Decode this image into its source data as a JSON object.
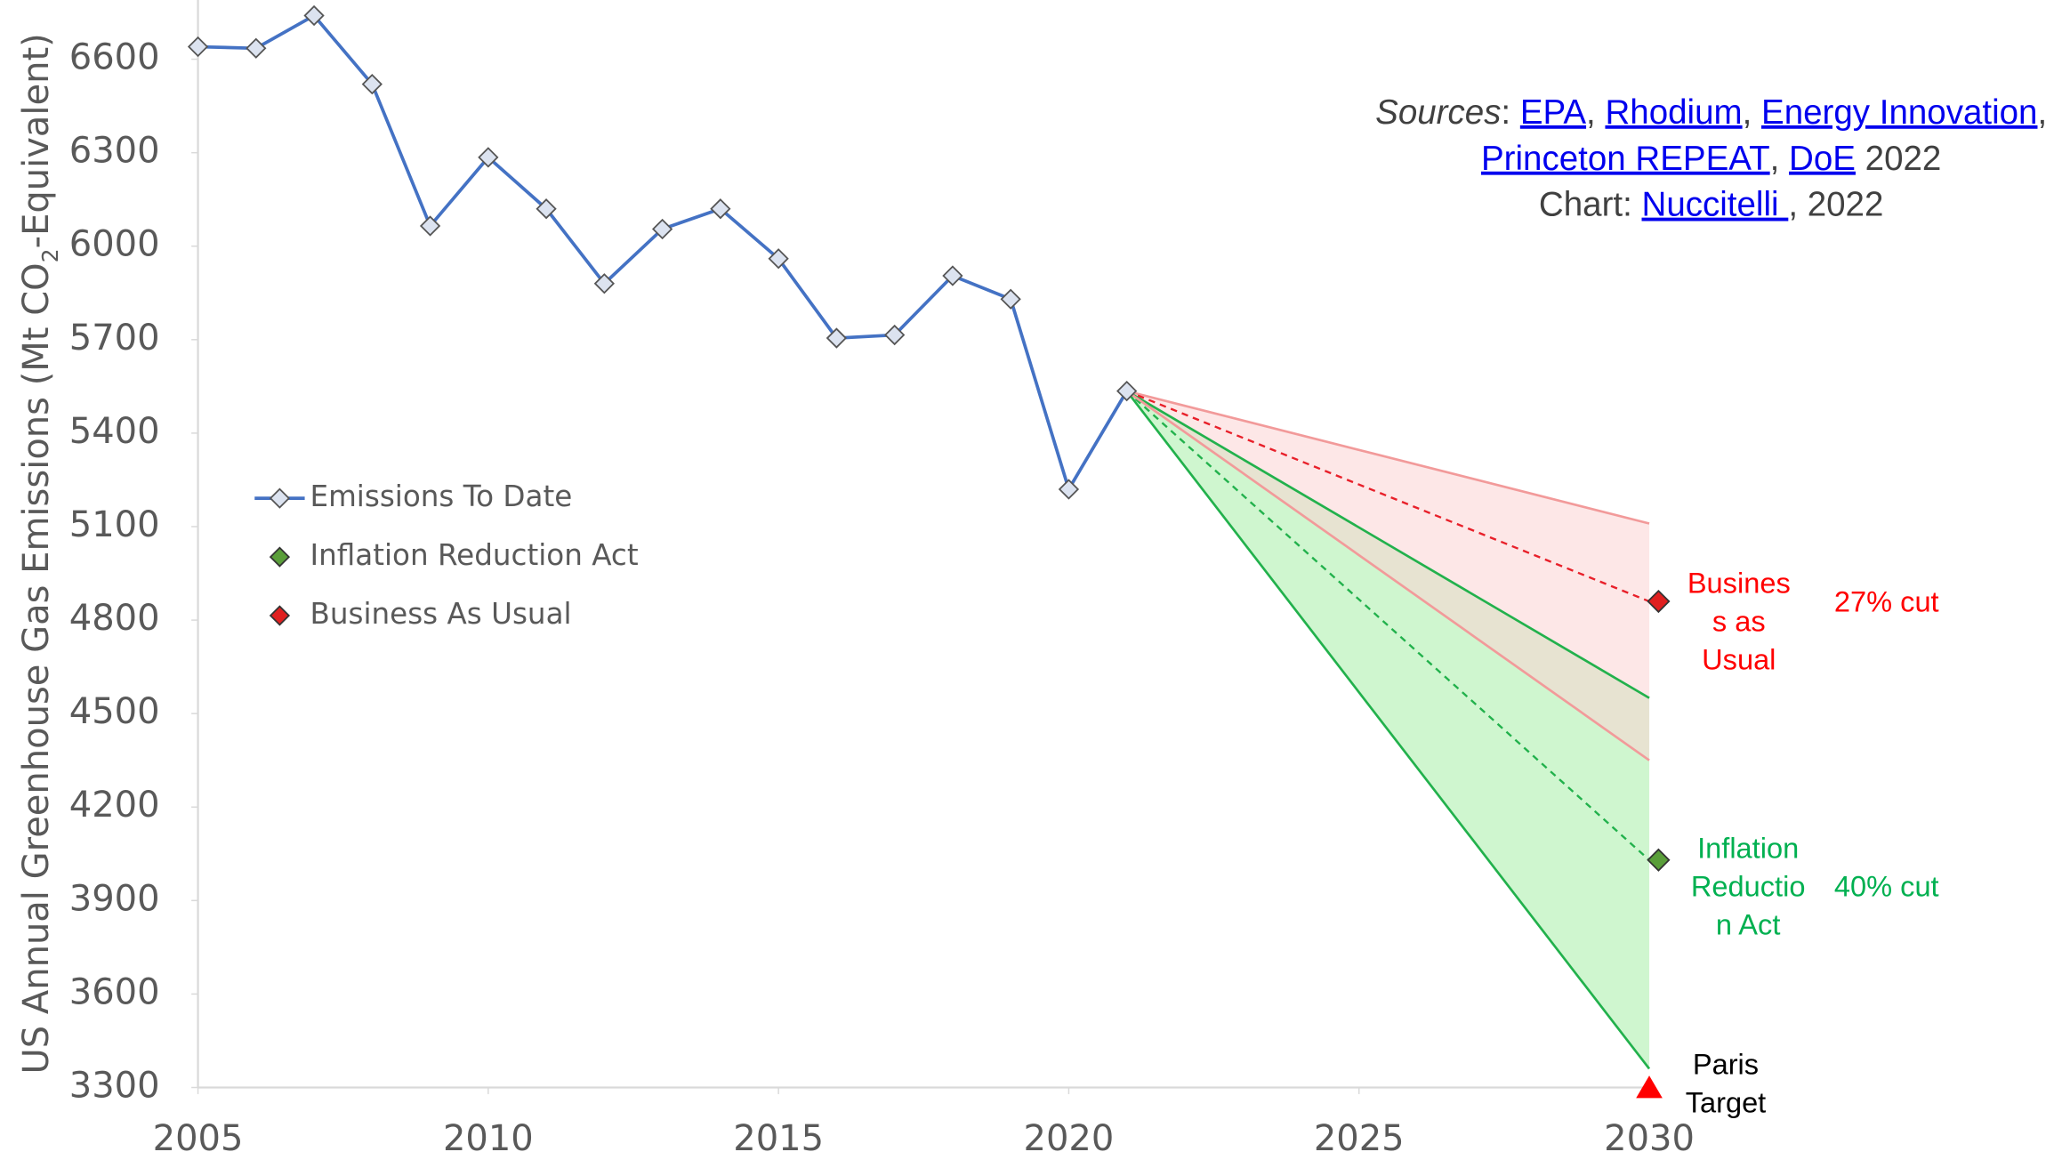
{
  "chart_data": {
    "type": "line",
    "ylabel": [
      "US Annual Greenhouse Gas Emissions (Mt CO",
      "2",
      "-Equivalent)"
    ],
    "xlim": [
      2005,
      2030
    ],
    "xticks": [
      2005,
      2010,
      2015,
      2020,
      2025,
      2030
    ],
    "ylim": [
      3300,
      6790
    ],
    "yticks": [
      3300,
      3600,
      3900,
      4200,
      4500,
      4800,
      5100,
      5400,
      5700,
      6000,
      6300,
      6600
    ],
    "series": [
      {
        "name": "Emissions To Date",
        "color": "#4472c4",
        "marker_fill": "#dce3f0",
        "x": [
          2005,
          2006,
          2007,
          2008,
          2009,
          2010,
          2011,
          2012,
          2013,
          2014,
          2015,
          2016,
          2017,
          2018,
          2019,
          2020,
          2021
        ],
        "values": [
          6640,
          6635,
          6740,
          6520,
          6065,
          6285,
          6120,
          5880,
          6055,
          6120,
          5960,
          5705,
          5715,
          5905,
          5830,
          5220,
          5535
        ]
      },
      {
        "name": "Inflation Reduction Act",
        "color": "#22b14c",
        "marker_fill": "#5a9e3a",
        "band_color": "#a8eea8",
        "x": [
          2021,
          2030
        ],
        "values": [
          5535,
          4030
        ],
        "low": [
          5535,
          3360
        ],
        "high": [
          5535,
          4550
        ]
      },
      {
        "name": "Business As Usual",
        "color": "#e8202a",
        "marker_fill": "#e02020",
        "band_color": "#fbd3d3",
        "band_line": "#f29a9a",
        "x": [
          2021,
          2030
        ],
        "values": [
          5535,
          4860
        ],
        "low": [
          5535,
          4350
        ],
        "high": [
          5535,
          5110
        ]
      }
    ],
    "annotations": [
      {
        "lines": [
          "Busines",
          "s as",
          "Usual"
        ],
        "color": "#ff0000"
      },
      {
        "lines": [
          "27% cut"
        ],
        "color": "#ff0000"
      },
      {
        "lines": [
          "Inflation",
          "Reductio",
          "n Act"
        ],
        "color": "#00b050"
      },
      {
        "lines": [
          "40% cut"
        ],
        "color": "#00b050"
      },
      {
        "lines": [
          "Paris",
          "Target"
        ],
        "color": "#000000"
      }
    ],
    "paris_target": {
      "x": 2030,
      "value": 3300,
      "color": "#ff0000"
    },
    "sources": [
      [
        {
          "text": "Sources",
          "italic": true
        },
        {
          "text": ": "
        },
        {
          "text": "EPA",
          "link": true
        },
        {
          "text": ", "
        },
        {
          "text": "Rhodium",
          "link": true
        },
        {
          "text": ", "
        },
        {
          "text": "Energy Innovation",
          "link": true
        },
        {
          "text": ","
        }
      ],
      [
        {
          "text": "Princeton REPEAT",
          "link": true
        },
        {
          "text": ", "
        },
        {
          "text": "DoE",
          "link": true
        },
        {
          "text": " 2022"
        }
      ],
      [
        {
          "text": "Chart: "
        },
        {
          "text": "Nuccitelli ",
          "link": true
        },
        {
          "text": ", 2022"
        }
      ]
    ]
  }
}
